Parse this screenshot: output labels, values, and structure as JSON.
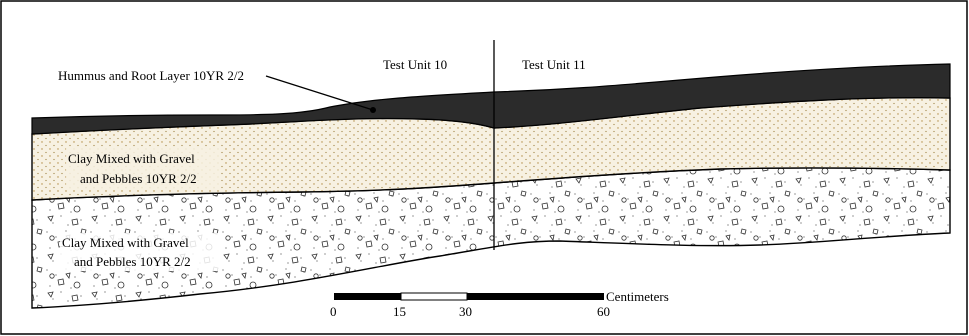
{
  "labels": {
    "unit_left": "Test Unit 10",
    "unit_right": "Test Unit 11",
    "humus_layer": "Hummus and Root Layer 10YR 2/2",
    "upper_clay_line1": "Clay Mixed with Gravel",
    "upper_clay_line2": "and Pebbles 10YR 2/2",
    "lower_clay_line1": "Clay Mixed with Gravel",
    "lower_clay_line2": "and Pebbles 10YR 2/2"
  },
  "scale": {
    "unit_label": "Centimeters",
    "ticks": [
      "0",
      "15",
      "30",
      "60"
    ]
  },
  "colors": {
    "humus": "#2b2b2b",
    "upper_clay_fill": "#f7f1e2",
    "upper_clay_dots": "#b08a40",
    "lower_clay_fill": "#ffffff",
    "outline": "#000000"
  }
}
